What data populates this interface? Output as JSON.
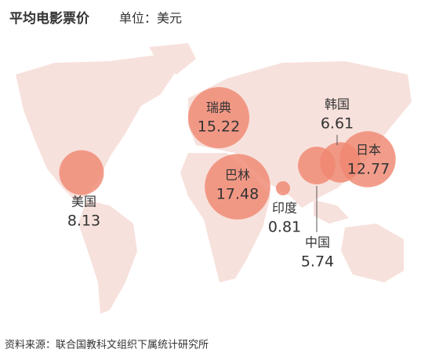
{
  "chart_data": {
    "type": "bubble-map",
    "title": "平均电影票价",
    "subtitle": "单位：美元",
    "source": "资料来源：联合国教科文组织下属统计研究所",
    "categories": [
      "瑞典",
      "巴林",
      "美国",
      "印度",
      "中国",
      "韩国",
      "日本"
    ],
    "values": [
      15.22,
      17.48,
      8.13,
      0.81,
      5.74,
      6.61,
      12.77
    ],
    "color": "#ef8771"
  }
}
